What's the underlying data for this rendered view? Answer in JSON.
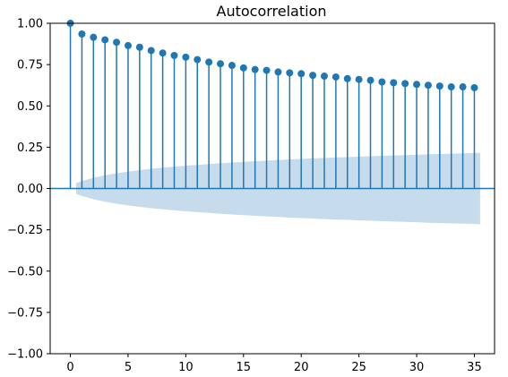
{
  "chart_data": {
    "type": "stem",
    "title": "Autocorrelation",
    "xlabel": "",
    "ylabel": "",
    "xlim": [
      -1.75,
      36.75
    ],
    "ylim": [
      -1.0,
      1.0
    ],
    "xticks": [
      0,
      5,
      10,
      15,
      20,
      25,
      30,
      35
    ],
    "xtick_labels": [
      "0",
      "5",
      "10",
      "15",
      "20",
      "25",
      "30",
      "35"
    ],
    "yticks": [
      1.0,
      0.75,
      0.5,
      0.25,
      0.0,
      -0.25,
      -0.5,
      -0.75,
      -1.0
    ],
    "ytick_labels": [
      "1.00",
      "0.75",
      "0.50",
      "0.25",
      "0.00",
      "−0.25",
      "−0.50",
      "−0.75",
      "−1.00"
    ],
    "lags": [
      0,
      1,
      2,
      3,
      4,
      5,
      6,
      7,
      8,
      9,
      10,
      11,
      12,
      13,
      14,
      15,
      16,
      17,
      18,
      19,
      20,
      21,
      22,
      23,
      24,
      25,
      26,
      27,
      28,
      29,
      30,
      31,
      32,
      33,
      34,
      35
    ],
    "acf": [
      1.0,
      0.935,
      0.915,
      0.9,
      0.885,
      0.865,
      0.855,
      0.835,
      0.82,
      0.805,
      0.795,
      0.78,
      0.765,
      0.755,
      0.745,
      0.73,
      0.72,
      0.715,
      0.705,
      0.7,
      0.695,
      0.685,
      0.68,
      0.675,
      0.665,
      0.66,
      0.655,
      0.645,
      0.64,
      0.635,
      0.63,
      0.625,
      0.62,
      0.615,
      0.615,
      0.61
    ],
    "confidence_band": {
      "lags": [
        0.5,
        1,
        2,
        3,
        4,
        5,
        6,
        7,
        8,
        9,
        10,
        11,
        12,
        13,
        14,
        15,
        16,
        17,
        18,
        19,
        20,
        21,
        22,
        23,
        24,
        25,
        26,
        27,
        28,
        29,
        30,
        31,
        32,
        33,
        34,
        35,
        35.5
      ],
      "upper": [
        0.033,
        0.045,
        0.065,
        0.08,
        0.092,
        0.102,
        0.111,
        0.119,
        0.126,
        0.132,
        0.138,
        0.143,
        0.148,
        0.153,
        0.157,
        0.161,
        0.165,
        0.169,
        0.172,
        0.176,
        0.179,
        0.182,
        0.185,
        0.188,
        0.19,
        0.193,
        0.195,
        0.198,
        0.2,
        0.202,
        0.204,
        0.207,
        0.209,
        0.211,
        0.213,
        0.215,
        0.216
      ]
    },
    "grid": false,
    "legend": "none",
    "colors": {
      "stem": "#1f77b4",
      "band": "#c6dbec",
      "zero_line": "#1f77b4"
    }
  }
}
